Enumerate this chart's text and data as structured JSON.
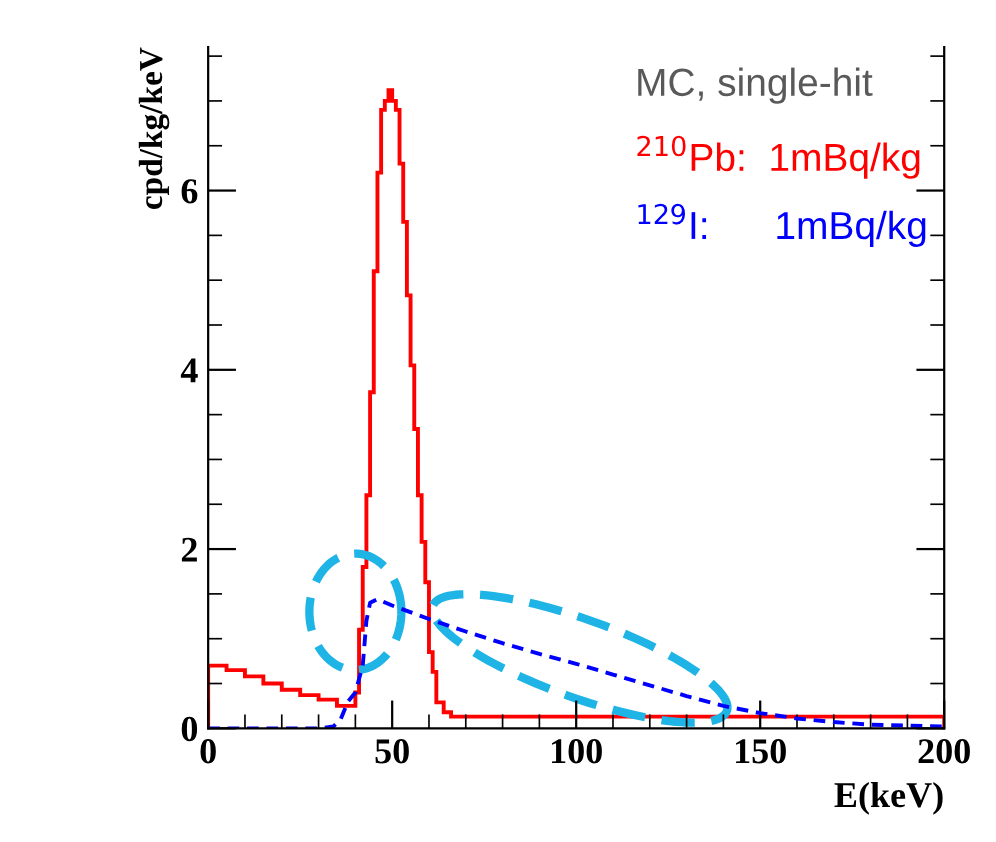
{
  "chart_data": {
    "type": "histogram",
    "xlabel": "E(keV)",
    "ylabel": "cpd/kg/keV",
    "annotations": [
      "MC, single-hit"
    ],
    "bins": [
      0,
      5,
      10,
      15,
      20,
      25,
      30,
      35,
      40,
      41,
      42,
      43,
      44,
      45,
      46,
      47,
      48,
      49,
      50,
      51,
      52,
      53,
      54,
      55,
      56,
      57,
      58,
      59,
      60,
      61,
      62,
      63,
      64,
      65,
      66,
      70,
      80,
      90,
      100,
      110,
      120,
      130,
      140,
      150,
      160,
      170,
      180,
      190,
      200
    ],
    "series": [
      {
        "name": "$^{210}$Pb:  1mBq/kg",
        "color": "#ff0000",
        "values": [
          0.7,
          0.65,
          0.58,
          0.5,
          0.43,
          0.37,
          0.32,
          0.25,
          0.4,
          1.1,
          1.8,
          2.6,
          3.75,
          5.1,
          6.2,
          6.9,
          7.0,
          7.12,
          7.0,
          6.9,
          6.3,
          5.65,
          4.83,
          4.05,
          3.34,
          2.6,
          2.08,
          1.63,
          0.85,
          0.63,
          0.29,
          0.29,
          0.18,
          0.18,
          0.13,
          0.13,
          0.13,
          0.13,
          0.13,
          0.13,
          0.13,
          0.13,
          0.13,
          0.13,
          0.13,
          0.13,
          0.13,
          0.13
        ]
      },
      {
        "name": "$^{129}$I:      1mBq/kg",
        "color": "#0000ff",
        "type": "line",
        "line_style": "dashed",
        "x": [
          0,
          30,
          34,
          36,
          38,
          40,
          42,
          43,
          44,
          46,
          50,
          60,
          70,
          80,
          90,
          100,
          110,
          120,
          130,
          140,
          150,
          160,
          170,
          180,
          190,
          200
        ],
        "values": [
          0,
          0,
          0.02,
          0.1,
          0.3,
          0.4,
          0.7,
          1.2,
          1.4,
          1.44,
          1.37,
          1.22,
          1.08,
          0.95,
          0.83,
          0.72,
          0.6,
          0.48,
          0.36,
          0.25,
          0.17,
          0.11,
          0.07,
          0.04,
          0.03,
          0.02
        ]
      }
    ],
    "xlim": [
      0,
      200
    ],
    "xticks": [
      0,
      50,
      100,
      150,
      200
    ],
    "ylim": [
      0,
      7.6
    ],
    "yticks": [
      0,
      2,
      4,
      6
    ],
    "legend": "top right",
    "grid": false
  }
}
